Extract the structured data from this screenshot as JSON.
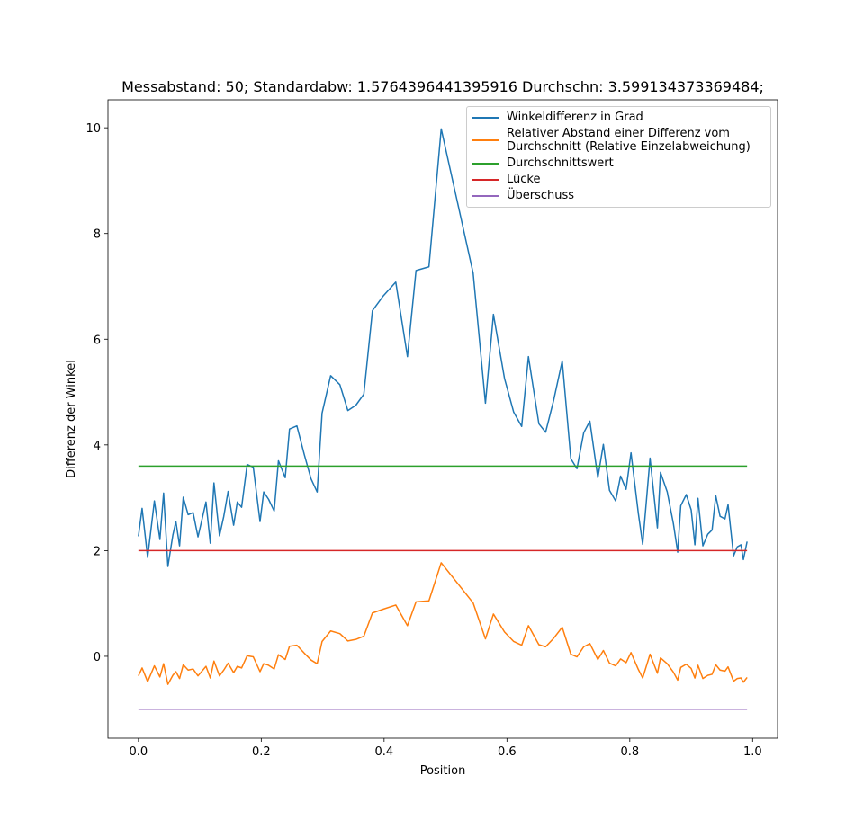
{
  "chart_data": {
    "type": "line",
    "title": "Messabstand: 50; Standardabw: 1.5764396441395916 Durchschn: 3.599134373369484;",
    "xlabel": "Position",
    "ylabel": "Differenz der Winkel",
    "x": [
      0.0,
      0.006,
      0.015,
      0.026,
      0.035,
      0.041,
      0.048,
      0.056,
      0.061,
      0.067,
      0.073,
      0.081,
      0.089,
      0.097,
      0.11,
      0.117,
      0.123,
      0.132,
      0.139,
      0.146,
      0.155,
      0.161,
      0.168,
      0.177,
      0.187,
      0.198,
      0.204,
      0.212,
      0.221,
      0.228,
      0.239,
      0.246,
      0.258,
      0.27,
      0.281,
      0.291,
      0.299,
      0.313,
      0.328,
      0.341,
      0.354,
      0.367,
      0.381,
      0.398,
      0.419,
      0.438,
      0.452,
      0.473,
      0.493,
      0.545,
      0.565,
      0.578,
      0.596,
      0.611,
      0.624,
      0.635,
      0.652,
      0.663,
      0.676,
      0.69,
      0.704,
      0.714,
      0.725,
      0.735,
      0.748,
      0.757,
      0.767,
      0.777,
      0.785,
      0.794,
      0.802,
      0.814,
      0.821,
      0.833,
      0.845,
      0.85,
      0.861,
      0.871,
      0.878,
      0.883,
      0.892,
      0.9,
      0.906,
      0.911,
      0.919,
      0.927,
      0.934,
      0.94,
      0.947,
      0.955,
      0.96,
      0.969,
      0.975,
      0.981,
      0.985,
      0.991
    ],
    "series": [
      {
        "name": "Winkeldifferenz in Grad",
        "color": "#1f77b4",
        "values": [
          2.27,
          2.8,
          1.87,
          2.94,
          2.21,
          3.09,
          1.7,
          2.29,
          2.55,
          2.09,
          3.01,
          2.68,
          2.72,
          2.26,
          2.92,
          2.14,
          3.28,
          2.28,
          2.65,
          3.12,
          2.48,
          2.92,
          2.82,
          3.63,
          3.58,
          2.55,
          3.11,
          2.97,
          2.75,
          3.7,
          3.38,
          4.3,
          4.36,
          3.82,
          3.36,
          3.11,
          4.6,
          5.31,
          5.14,
          4.65,
          4.75,
          4.96,
          6.54,
          6.81,
          7.08,
          5.67,
          7.3,
          7.37,
          9.98,
          7.25,
          4.79,
          6.47,
          5.26,
          4.62,
          4.35,
          5.67,
          4.4,
          4.24,
          4.84,
          5.59,
          3.74,
          3.55,
          4.23,
          4.45,
          3.38,
          4.01,
          3.14,
          2.94,
          3.41,
          3.16,
          3.85,
          2.7,
          2.12,
          3.75,
          2.43,
          3.48,
          3.11,
          2.51,
          1.97,
          2.85,
          3.06,
          2.77,
          2.11,
          2.99,
          2.09,
          2.31,
          2.39,
          3.04,
          2.65,
          2.6,
          2.87,
          1.9,
          2.07,
          2.11,
          1.83,
          2.17
        ]
      },
      {
        "name": "Relativer Abstand einer Differenz vom\nDurchschnitt (Relative Einzelabweichung)",
        "color": "#ff7f0e",
        "values": [
          -0.37,
          -0.22,
          -0.48,
          -0.18,
          -0.39,
          -0.14,
          -0.53,
          -0.36,
          -0.29,
          -0.42,
          -0.16,
          -0.26,
          -0.24,
          -0.37,
          -0.19,
          -0.41,
          -0.09,
          -0.37,
          -0.26,
          -0.13,
          -0.31,
          -0.19,
          -0.22,
          0.01,
          -0.01,
          -0.29,
          -0.14,
          -0.17,
          -0.24,
          0.03,
          -0.06,
          0.19,
          0.21,
          0.06,
          -0.07,
          -0.14,
          0.28,
          0.48,
          0.43,
          0.29,
          0.32,
          0.38,
          0.82,
          0.89,
          0.97,
          0.58,
          1.03,
          1.05,
          1.77,
          1.01,
          0.33,
          0.8,
          0.46,
          0.28,
          0.21,
          0.58,
          0.22,
          0.18,
          0.34,
          0.55,
          0.04,
          -0.01,
          0.18,
          0.24,
          -0.06,
          0.11,
          -0.13,
          -0.18,
          -0.05,
          -0.12,
          0.07,
          -0.25,
          -0.41,
          0.04,
          -0.32,
          -0.03,
          -0.14,
          -0.3,
          -0.45,
          -0.21,
          -0.15,
          -0.23,
          -0.41,
          -0.17,
          -0.42,
          -0.36,
          -0.34,
          -0.16,
          -0.26,
          -0.28,
          -0.2,
          -0.47,
          -0.42,
          -0.41,
          -0.49,
          -0.4
        ]
      },
      {
        "name": "Durchschnittswert",
        "color": "#2ca02c",
        "x": [
          0,
          0.991
        ],
        "values": [
          3.599134373369484,
          3.599134373369484
        ]
      },
      {
        "name": "Lücke",
        "color": "#d62728",
        "x": [
          0,
          0.991
        ],
        "values": [
          2,
          2
        ]
      },
      {
        "name": "Überschuss",
        "color": "#9467bd",
        "x": [
          0,
          0.991
        ],
        "values": [
          -1,
          -1
        ]
      }
    ],
    "xlim": [
      -0.0496,
      1.0406
    ],
    "ylim": [
      -1.549,
      10.53
    ],
    "xticks": [
      {
        "value": 0,
        "label": "0.0"
      },
      0.2,
      0.4,
      0.6,
      0.8,
      {
        "value": 1,
        "label": "1.0"
      }
    ],
    "yticks": [
      0,
      2,
      4,
      6,
      8,
      10
    ],
    "legend": "upper right"
  }
}
